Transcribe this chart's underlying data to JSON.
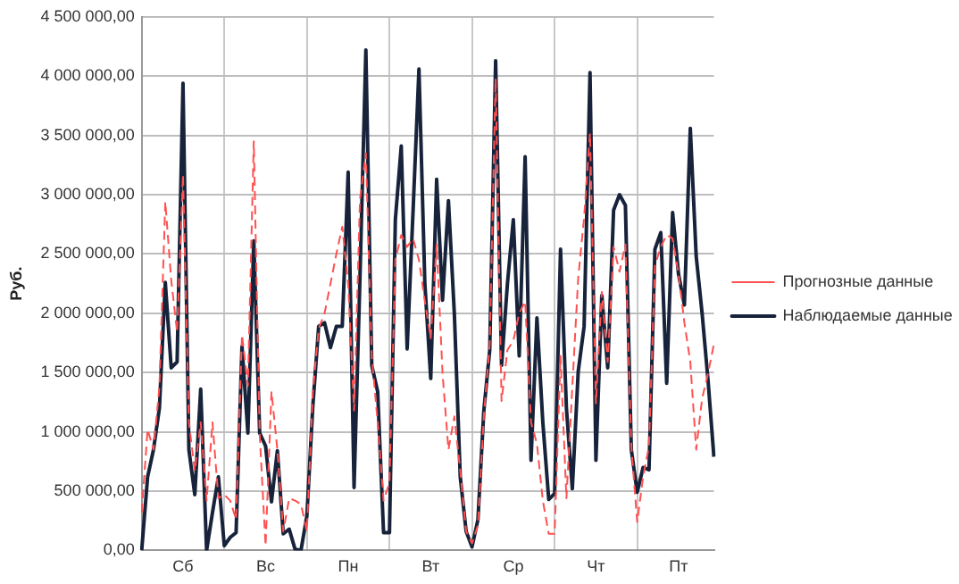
{
  "chart_data": {
    "type": "line",
    "ylabel": "Руб.",
    "categories": [
      null,
      null,
      null,
      null,
      null,
      null,
      null,
      "Сб",
      null,
      null,
      null,
      null,
      null,
      null,
      null,
      null,
      null,
      null,
      null,
      null,
      null,
      "Вс",
      null,
      null,
      null,
      null,
      null,
      null,
      null,
      null,
      null,
      null,
      null,
      null,
      null,
      "Пн",
      null,
      null,
      null,
      null,
      null,
      null,
      null,
      null,
      null,
      null,
      null,
      null,
      null,
      "Вт",
      null,
      null,
      null,
      null,
      null,
      null,
      null,
      null,
      null,
      null,
      null,
      null,
      null,
      "Ср",
      null,
      null,
      null,
      null,
      null,
      null,
      null,
      null,
      null,
      null,
      null,
      null,
      null,
      "Чт",
      null,
      null,
      null,
      null,
      null,
      null,
      null,
      null,
      null,
      null,
      null,
      null,
      null,
      "Пт",
      null,
      null,
      null,
      null,
      null,
      null
    ],
    "series": [
      {
        "name": "Прогнозные данные",
        "color": "#ff5050",
        "line_style": "dashed",
        "values": [
          320000,
          1020000,
          850000,
          1380000,
          2940000,
          2280000,
          1840000,
          3170000,
          1080000,
          670000,
          1080000,
          420000,
          1080000,
          440000,
          470000,
          420000,
          260000,
          1820000,
          1390000,
          3450000,
          980000,
          40000,
          1340000,
          850000,
          160000,
          440000,
          420000,
          390000,
          160000,
          1330000,
          1870000,
          2000000,
          2250000,
          2500000,
          2730000,
          2250000,
          1180000,
          2960000,
          3350000,
          1640000,
          1080000,
          420000,
          570000,
          2450000,
          2660000,
          2560000,
          2630000,
          2450000,
          2100000,
          1790000,
          2580000,
          1490000,
          850000,
          1130000,
          670000,
          160000,
          60000,
          210000,
          1130000,
          1740000,
          3980000,
          1260000,
          1690000,
          1770000,
          2000000,
          2100000,
          1080000,
          900000,
          420000,
          140000,
          140000,
          1640000,
          440000,
          1380000,
          2300000,
          2810000,
          3520000,
          1240000,
          2180000,
          1590000,
          2560000,
          2350000,
          2580000,
          880000,
          240000,
          620000,
          880000,
          2400000,
          2560000,
          2660000,
          2630000,
          2330000,
          1920000,
          1590000,
          850000,
          1280000,
          1490000,
          1740000
        ]
      },
      {
        "name": "Наблюдаемые данные",
        "color": "#17233a",
        "line_style": "solid",
        "values": [
          0,
          620000,
          850000,
          1200000,
          2260000,
          1540000,
          1590000,
          3940000,
          850000,
          470000,
          1360000,
          0,
          320000,
          620000,
          40000,
          110000,
          150000,
          1720000,
          990000,
          2610000,
          990000,
          880000,
          410000,
          840000,
          140000,
          180000,
          10000,
          0,
          290000,
          1210000,
          1890000,
          1920000,
          1710000,
          1890000,
          1890000,
          3190000,
          530000,
          2300000,
          4220000,
          1560000,
          1340000,
          150000,
          150000,
          2790000,
          3410000,
          1700000,
          2860000,
          4060000,
          2250000,
          1450000,
          3130000,
          2110000,
          2950000,
          2000000,
          620000,
          160000,
          30000,
          260000,
          1180000,
          1690000,
          4130000,
          1560000,
          2250000,
          2790000,
          1640000,
          3320000,
          760000,
          1960000,
          1080000,
          430000,
          480000,
          2540000,
          1200000,
          520000,
          1510000,
          1890000,
          4030000,
          760000,
          2150000,
          1540000,
          2870000,
          3000000,
          2910000,
          850000,
          490000,
          700000,
          680000,
          2540000,
          2680000,
          1410000,
          2850000,
          2330000,
          2070000,
          3560000,
          2480000,
          2000000,
          1440000,
          790000
        ]
      }
    ],
    "ylim": [
      0,
      4500000
    ],
    "yticks": [
      {
        "value": 0,
        "label": "0,00"
      },
      {
        "value": 500000,
        "label": "500 000,00"
      },
      {
        "value": 1000000,
        "label": "1 000 000,00"
      },
      {
        "value": 1500000,
        "label": "1 500 000,00"
      },
      {
        "value": 2000000,
        "label": "2 000 000,00"
      },
      {
        "value": 2500000,
        "label": "2 500 000,00"
      },
      {
        "value": 3000000,
        "label": "3 000 000,00"
      },
      {
        "value": 3500000,
        "label": "3 500 000,00"
      },
      {
        "value": 4000000,
        "label": "4 000 000,00"
      },
      {
        "value": 4500000,
        "label": "4 500 000,00"
      }
    ],
    "grid": true,
    "legend": "right",
    "marker": "none"
  }
}
